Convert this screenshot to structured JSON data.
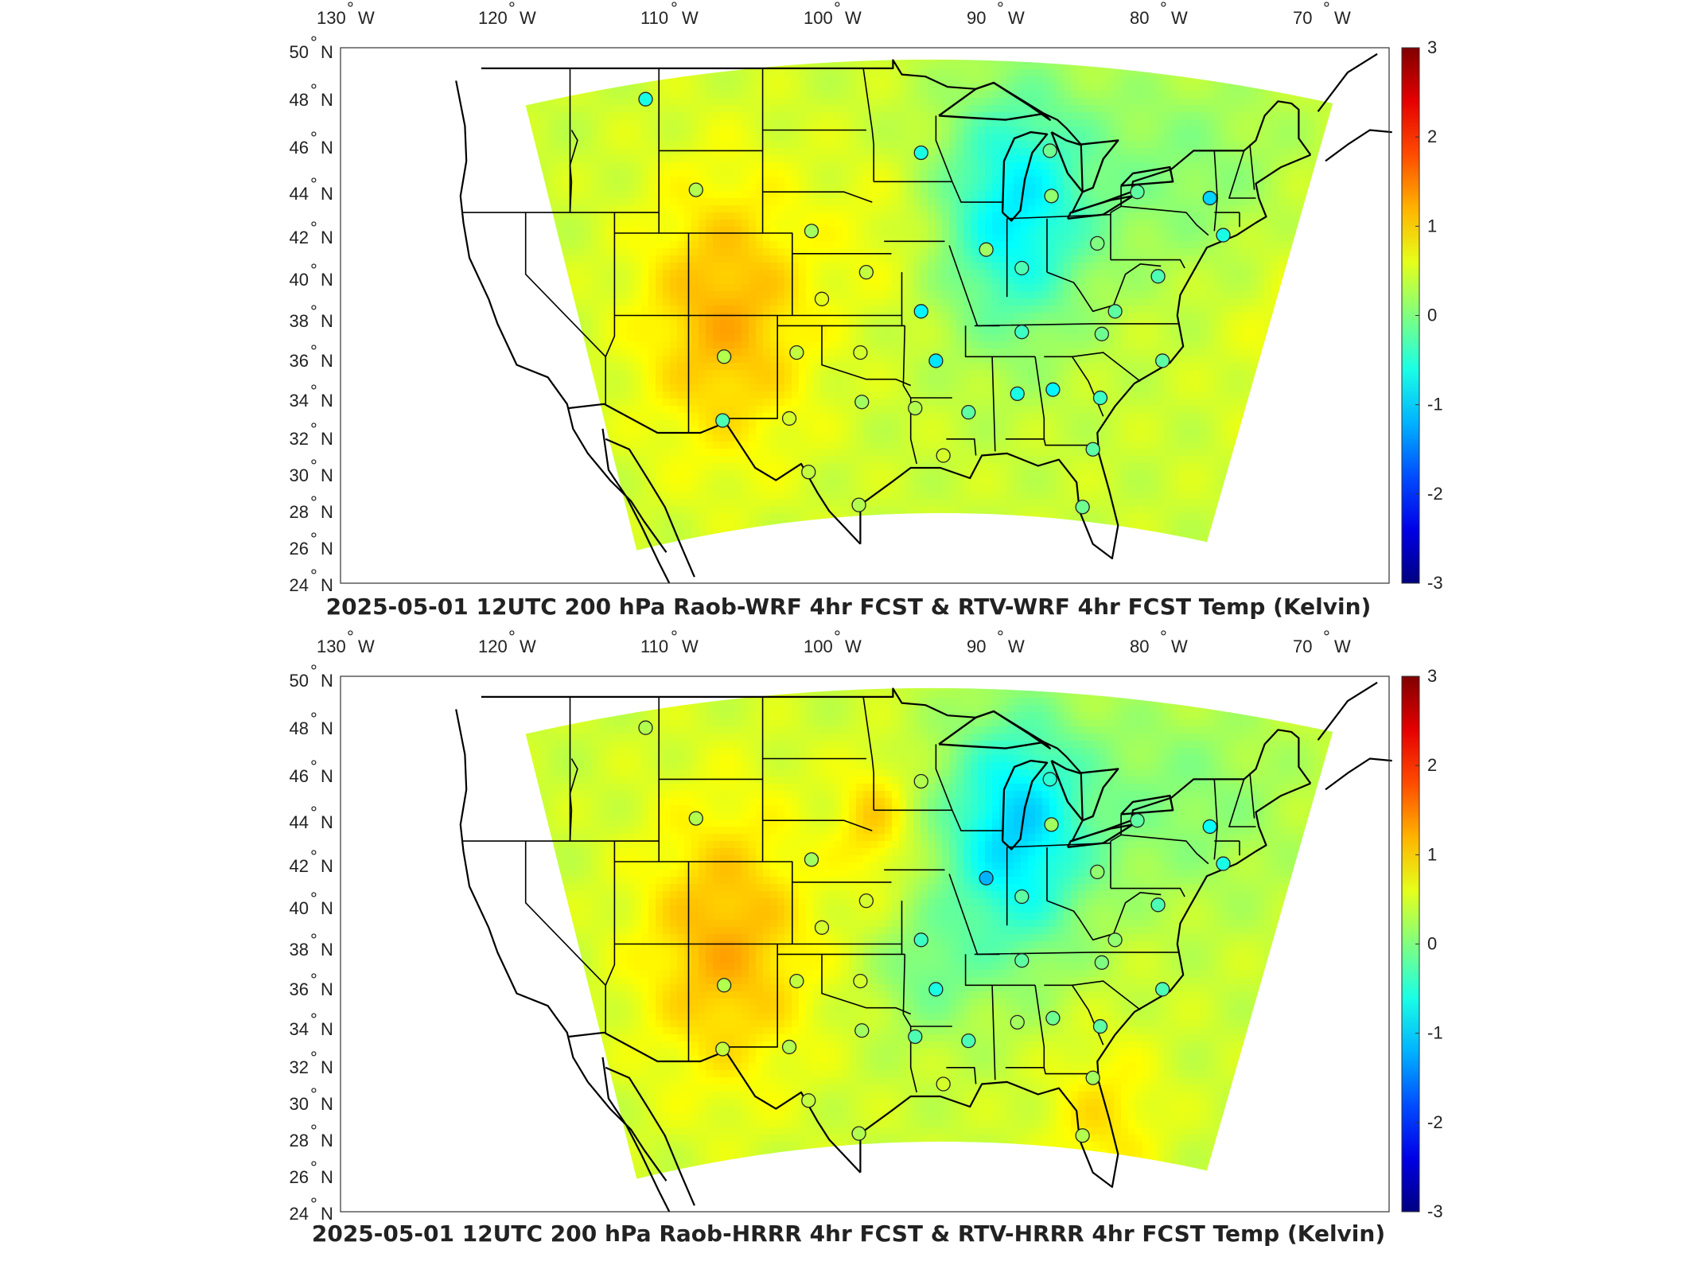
{
  "panels": [
    {
      "title": "2025-05-01 12UTC 200 hPa Raob-WRF 4hr FCST & RTV-WRF 4hr FCST Temp (Kelvin)",
      "variant": "wrf",
      "raob_stations": [
        {
          "lon": -111.9,
          "lat": 47.5,
          "value": -0.6
        },
        {
          "lon": -108.5,
          "lat": 43.1,
          "value": 0.3
        },
        {
          "lon": -100.7,
          "lat": 41.1,
          "value": 0.2
        },
        {
          "lon": -97.0,
          "lat": 39.1,
          "value": 0.4
        },
        {
          "lon": -93.3,
          "lat": 44.9,
          "value": -0.6
        },
        {
          "lon": -100.0,
          "lat": 37.8,
          "value": 0.6
        },
        {
          "lon": -93.3,
          "lat": 37.2,
          "value": -0.8
        },
        {
          "lon": -106.6,
          "lat": 35.0,
          "value": 0.3
        },
        {
          "lon": -101.7,
          "lat": 35.2,
          "value": 0.4
        },
        {
          "lon": -97.4,
          "lat": 35.2,
          "value": 0.5
        },
        {
          "lon": -92.3,
          "lat": 34.8,
          "value": -0.9
        },
        {
          "lon": -97.3,
          "lat": 32.8,
          "value": 0.2
        },
        {
          "lon": -106.7,
          "lat": 31.9,
          "value": -0.3
        },
        {
          "lon": -102.2,
          "lat": 32.0,
          "value": 0.5
        },
        {
          "lon": -93.7,
          "lat": 32.5,
          "value": 0.3
        },
        {
          "lon": -90.1,
          "lat": 32.3,
          "value": -0.2
        },
        {
          "lon": -86.8,
          "lat": 33.2,
          "value": -0.6
        },
        {
          "lon": -84.4,
          "lat": 33.4,
          "value": -0.8
        },
        {
          "lon": -100.9,
          "lat": 29.4,
          "value": 0.4
        },
        {
          "lon": -97.5,
          "lat": 27.8,
          "value": 0.3
        },
        {
          "lon": -91.8,
          "lat": 30.2,
          "value": 0.5
        },
        {
          "lon": -81.7,
          "lat": 30.5,
          "value": -0.2
        },
        {
          "lon": -82.4,
          "lat": 27.7,
          "value": -0.1
        },
        {
          "lon": -81.2,
          "lat": 33.0,
          "value": -0.4
        },
        {
          "lon": -77.0,
          "lat": 34.8,
          "value": -0.2
        },
        {
          "lon": -88.9,
          "lat": 40.2,
          "value": 0.2
        },
        {
          "lon": -86.5,
          "lat": 39.3,
          "value": -0.3
        },
        {
          "lon": -84.5,
          "lat": 42.8,
          "value": 0.1
        },
        {
          "lon": -84.6,
          "lat": 45.0,
          "value": -0.1
        },
        {
          "lon": -81.4,
          "lat": 40.5,
          "value": 0.0
        },
        {
          "lon": -86.5,
          "lat": 36.2,
          "value": -0.4
        },
        {
          "lon": -81.1,
          "lat": 36.1,
          "value": -0.1
        },
        {
          "lon": -80.2,
          "lat": 37.2,
          "value": -0.2
        },
        {
          "lon": -77.3,
          "lat": 38.9,
          "value": -0.3
        },
        {
          "lon": -78.7,
          "lat": 43.0,
          "value": -0.2
        },
        {
          "lon": -73.8,
          "lat": 42.7,
          "value": -1.0
        },
        {
          "lon": -72.9,
          "lat": 40.9,
          "value": -0.6
        }
      ]
    },
    {
      "title": "2025-05-01 12UTC 200 hPa Raob-HRRR 4hr FCST & RTV-HRRR 4hr FCST Temp (Kelvin)",
      "variant": "hrrr",
      "raob_stations": [
        {
          "lon": -111.9,
          "lat": 47.5,
          "value": 0.3
        },
        {
          "lon": -108.5,
          "lat": 43.1,
          "value": 0.3
        },
        {
          "lon": -100.7,
          "lat": 41.1,
          "value": 0.2
        },
        {
          "lon": -97.0,
          "lat": 39.1,
          "value": 0.5
        },
        {
          "lon": -93.3,
          "lat": 44.9,
          "value": 0.3
        },
        {
          "lon": -100.0,
          "lat": 37.8,
          "value": 0.5
        },
        {
          "lon": -93.3,
          "lat": 37.2,
          "value": -0.4
        },
        {
          "lon": -106.6,
          "lat": 35.0,
          "value": 0.3
        },
        {
          "lon": -101.7,
          "lat": 35.2,
          "value": 0.4
        },
        {
          "lon": -97.4,
          "lat": 35.2,
          "value": 0.5
        },
        {
          "lon": -92.3,
          "lat": 34.8,
          "value": -0.6
        },
        {
          "lon": -97.3,
          "lat": 32.8,
          "value": 0.2
        },
        {
          "lon": -106.7,
          "lat": 31.9,
          "value": 0.4
        },
        {
          "lon": -102.2,
          "lat": 32.0,
          "value": 0.3
        },
        {
          "lon": -93.7,
          "lat": 32.5,
          "value": -0.3
        },
        {
          "lon": -90.1,
          "lat": 32.3,
          "value": -0.3
        },
        {
          "lon": -86.8,
          "lat": 33.2,
          "value": 0.2
        },
        {
          "lon": -84.4,
          "lat": 33.4,
          "value": -0.1
        },
        {
          "lon": -100.9,
          "lat": 29.4,
          "value": 0.4
        },
        {
          "lon": -97.5,
          "lat": 27.8,
          "value": 0.3
        },
        {
          "lon": -91.8,
          "lat": 30.2,
          "value": 0.5
        },
        {
          "lon": -81.7,
          "lat": 30.5,
          "value": 0.2
        },
        {
          "lon": -82.4,
          "lat": 27.7,
          "value": 0.3
        },
        {
          "lon": -81.2,
          "lat": 33.0,
          "value": -0.2
        },
        {
          "lon": -77.0,
          "lat": 34.8,
          "value": -0.3
        },
        {
          "lon": -88.9,
          "lat": 40.2,
          "value": -1.2
        },
        {
          "lon": -86.5,
          "lat": 39.3,
          "value": -0.2
        },
        {
          "lon": -84.5,
          "lat": 42.8,
          "value": 0.2
        },
        {
          "lon": -84.6,
          "lat": 45.0,
          "value": -0.5
        },
        {
          "lon": -81.4,
          "lat": 40.5,
          "value": 0.1
        },
        {
          "lon": -86.5,
          "lat": 36.2,
          "value": -0.2
        },
        {
          "lon": -81.1,
          "lat": 36.1,
          "value": 0.0
        },
        {
          "lon": -80.2,
          "lat": 37.2,
          "value": 0.1
        },
        {
          "lon": -77.3,
          "lat": 38.9,
          "value": -0.3
        },
        {
          "lon": -78.7,
          "lat": 43.0,
          "value": -0.2
        },
        {
          "lon": -73.8,
          "lat": 42.7,
          "value": -0.7
        },
        {
          "lon": -72.9,
          "lat": 40.9,
          "value": -0.6
        }
      ]
    }
  ],
  "lon_ticks": [
    "130",
    "120",
    "110",
    "100",
    "90",
    "80",
    "70"
  ],
  "lon_hemisphere": "W",
  "lat_ticks": [
    "50",
    "48",
    "46",
    "44",
    "42",
    "40",
    "38",
    "36",
    "34",
    "32",
    "30",
    "28",
    "26",
    "24"
  ],
  "lat_hemisphere": "N",
  "degree_symbol": "°",
  "colorbar": {
    "min": -3,
    "max": 3,
    "ticks": [
      "3",
      "2",
      "1",
      "0",
      "-1",
      "-2",
      "-3"
    ],
    "colormap": "jet"
  }
}
